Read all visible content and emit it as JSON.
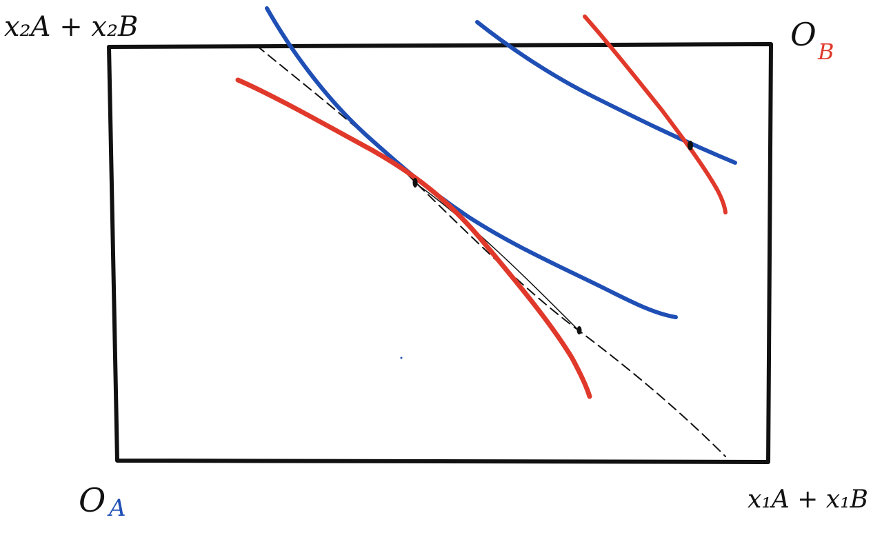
{
  "labels": {
    "top_left": "x₂A + x₂B",
    "origin_a_letter": "O",
    "origin_a_sub": "A",
    "origin_b_letter": "O",
    "origin_b_sub": "B",
    "bottom_right": "x₁A + x₁B"
  },
  "colors": {
    "box": "#111111",
    "agent_a": "#1f4fb5",
    "agent_b": "#e0392b",
    "contract_curve": "#111111"
  }
}
